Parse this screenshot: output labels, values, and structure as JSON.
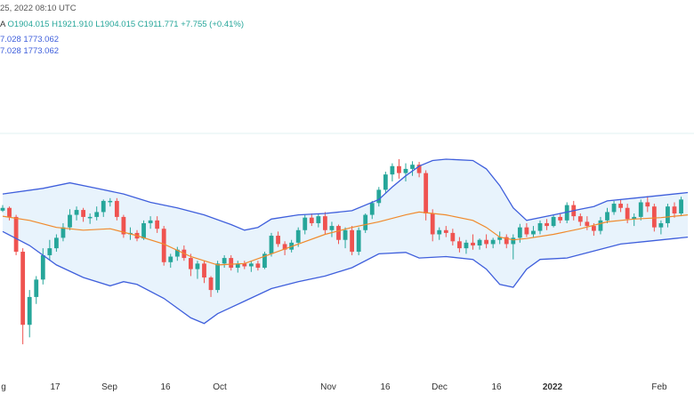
{
  "header": {
    "datetime": "25, 2022 08:10 UTC",
    "ohlc_prefix": "A",
    "open": "O1904.015",
    "high": "H1921.910",
    "low": "L1904.015",
    "close": "C1911.771",
    "change": "+7.755 (+0.41%)",
    "line2": "7.028  1773.062",
    "line3": "7.028  1773.062"
  },
  "colors": {
    "up": "#26a69a",
    "down": "#ef5350",
    "band": "#3f5fdc",
    "band_fill": "#e8f3fc",
    "basis": "#f08a2c",
    "gridline": "#e0f2f1"
  },
  "chart_data": {
    "type": "candlestick",
    "indicator": "bollinger-bands",
    "x_ticks": [
      "g",
      "17",
      "Sep",
      "16",
      "Oct",
      "Nov",
      "16",
      "Dec",
      "16",
      "2022",
      "Feb"
    ],
    "y_range": [
      1620,
      2080
    ],
    "horizontal_line": 1965,
    "candles": [
      [
        1854,
        1862,
        1852,
        1858
      ],
      [
        1858,
        1860,
        1840,
        1845
      ],
      [
        1845,
        1848,
        1790,
        1795
      ],
      [
        1795,
        1800,
        1662,
        1690
      ],
      [
        1690,
        1740,
        1672,
        1730
      ],
      [
        1730,
        1760,
        1720,
        1755
      ],
      [
        1755,
        1800,
        1748,
        1790
      ],
      [
        1790,
        1812,
        1782,
        1800
      ],
      [
        1800,
        1820,
        1795,
        1815
      ],
      [
        1815,
        1836,
        1810,
        1830
      ],
      [
        1830,
        1856,
        1826,
        1848
      ],
      [
        1848,
        1860,
        1840,
        1855
      ],
      [
        1855,
        1858,
        1838,
        1845
      ],
      [
        1845,
        1850,
        1835,
        1845
      ],
      [
        1845,
        1860,
        1840,
        1852
      ],
      [
        1852,
        1870,
        1845,
        1868
      ],
      [
        1868,
        1872,
        1860,
        1868
      ],
      [
        1868,
        1872,
        1840,
        1845
      ],
      [
        1845,
        1848,
        1815,
        1820
      ],
      [
        1820,
        1830,
        1812,
        1822
      ],
      [
        1822,
        1826,
        1810,
        1814
      ],
      [
        1814,
        1840,
        1812,
        1836
      ],
      [
        1836,
        1846,
        1828,
        1840
      ],
      [
        1840,
        1846,
        1822,
        1828
      ],
      [
        1828,
        1832,
        1775,
        1780
      ],
      [
        1780,
        1792,
        1772,
        1788
      ],
      [
        1788,
        1802,
        1782,
        1798
      ],
      [
        1798,
        1804,
        1782,
        1786
      ],
      [
        1786,
        1792,
        1760,
        1770
      ],
      [
        1770,
        1782,
        1756,
        1778
      ],
      [
        1778,
        1782,
        1750,
        1758
      ],
      [
        1758,
        1760,
        1730,
        1740
      ],
      [
        1740,
        1782,
        1736,
        1778
      ],
      [
        1778,
        1790,
        1772,
        1786
      ],
      [
        1786,
        1790,
        1768,
        1772
      ],
      [
        1772,
        1782,
        1765,
        1778
      ],
      [
        1778,
        1782,
        1770,
        1774
      ],
      [
        1774,
        1782,
        1766,
        1778
      ],
      [
        1778,
        1782,
        1768,
        1772
      ],
      [
        1772,
        1795,
        1770,
        1792
      ],
      [
        1792,
        1822,
        1788,
        1818
      ],
      [
        1818,
        1824,
        1802,
        1806
      ],
      [
        1806,
        1810,
        1790,
        1798
      ],
      [
        1798,
        1812,
        1794,
        1808
      ],
      [
        1808,
        1830,
        1802,
        1826
      ],
      [
        1826,
        1848,
        1820,
        1844
      ],
      [
        1844,
        1850,
        1832,
        1836
      ],
      [
        1836,
        1850,
        1830,
        1846
      ],
      [
        1846,
        1852,
        1820,
        1826
      ],
      [
        1826,
        1838,
        1816,
        1832
      ],
      [
        1832,
        1834,
        1806,
        1812
      ],
      [
        1812,
        1830,
        1800,
        1826
      ],
      [
        1826,
        1832,
        1790,
        1795
      ],
      [
        1795,
        1830,
        1790,
        1826
      ],
      [
        1826,
        1850,
        1822,
        1848
      ],
      [
        1848,
        1868,
        1842,
        1865
      ],
      [
        1865,
        1888,
        1860,
        1884
      ],
      [
        1884,
        1910,
        1880,
        1906
      ],
      [
        1906,
        1922,
        1896,
        1918
      ],
      [
        1918,
        1928,
        1900,
        1908
      ],
      [
        1908,
        1922,
        1896,
        1914
      ],
      [
        1914,
        1925,
        1904,
        1920
      ],
      [
        1920,
        1924,
        1902,
        1908
      ],
      [
        1908,
        1912,
        1840,
        1850
      ],
      [
        1850,
        1856,
        1810,
        1820
      ],
      [
        1820,
        1830,
        1812,
        1826
      ],
      [
        1826,
        1832,
        1816,
        1822
      ],
      [
        1822,
        1828,
        1804,
        1810
      ],
      [
        1810,
        1816,
        1794,
        1800
      ],
      [
        1800,
        1812,
        1792,
        1808
      ],
      [
        1808,
        1820,
        1798,
        1804
      ],
      [
        1804,
        1814,
        1798,
        1812
      ],
      [
        1812,
        1820,
        1800,
        1806
      ],
      [
        1806,
        1815,
        1800,
        1812
      ],
      [
        1812,
        1824,
        1806,
        1816
      ],
      [
        1816,
        1820,
        1800,
        1806
      ],
      [
        1806,
        1820,
        1784,
        1815
      ],
      [
        1815,
        1835,
        1808,
        1830
      ],
      [
        1830,
        1836,
        1816,
        1820
      ],
      [
        1820,
        1832,
        1815,
        1825
      ],
      [
        1825,
        1840,
        1820,
        1836
      ],
      [
        1836,
        1842,
        1826,
        1832
      ],
      [
        1832,
        1848,
        1830,
        1845
      ],
      [
        1845,
        1850,
        1836,
        1840
      ],
      [
        1840,
        1866,
        1836,
        1862
      ],
      [
        1862,
        1868,
        1840,
        1846
      ],
      [
        1846,
        1850,
        1832,
        1838
      ],
      [
        1838,
        1846,
        1826,
        1832
      ],
      [
        1832,
        1836,
        1818,
        1825
      ],
      [
        1825,
        1845,
        1820,
        1840
      ],
      [
        1840,
        1858,
        1836,
        1852
      ],
      [
        1852,
        1868,
        1848,
        1864
      ],
      [
        1864,
        1870,
        1852,
        1858
      ],
      [
        1858,
        1864,
        1836,
        1842
      ],
      [
        1842,
        1850,
        1832,
        1845
      ],
      [
        1845,
        1870,
        1840,
        1866
      ],
      [
        1866,
        1875,
        1852,
        1860
      ],
      [
        1860,
        1864,
        1824,
        1830
      ],
      [
        1830,
        1840,
        1820,
        1836
      ],
      [
        1836,
        1864,
        1830,
        1860
      ],
      [
        1860,
        1866,
        1844,
        1850
      ],
      [
        1850,
        1874,
        1846,
        1870
      ]
    ],
    "bb_upper": [
      [
        0,
        1878
      ],
      [
        6,
        1886
      ],
      [
        10,
        1894
      ],
      [
        14,
        1886
      ],
      [
        18,
        1878
      ],
      [
        22,
        1866
      ],
      [
        26,
        1858
      ],
      [
        30,
        1848
      ],
      [
        34,
        1834
      ],
      [
        36,
        1826
      ],
      [
        38,
        1830
      ],
      [
        40,
        1842
      ],
      [
        44,
        1848
      ],
      [
        48,
        1850
      ],
      [
        52,
        1854
      ],
      [
        56,
        1870
      ],
      [
        58,
        1888
      ],
      [
        60,
        1904
      ],
      [
        62,
        1918
      ],
      [
        64,
        1926
      ],
      [
        66,
        1928
      ],
      [
        70,
        1926
      ],
      [
        72,
        1914
      ],
      [
        74,
        1890
      ],
      [
        76,
        1858
      ],
      [
        78,
        1840
      ],
      [
        82,
        1848
      ],
      [
        86,
        1856
      ],
      [
        88,
        1860
      ],
      [
        90,
        1868
      ],
      [
        94,
        1872
      ],
      [
        98,
        1876
      ],
      [
        102,
        1880
      ]
    ],
    "bb_lower": [
      [
        0,
        1824
      ],
      [
        4,
        1804
      ],
      [
        8,
        1776
      ],
      [
        12,
        1758
      ],
      [
        16,
        1746
      ],
      [
        18,
        1752
      ],
      [
        20,
        1748
      ],
      [
        24,
        1728
      ],
      [
        28,
        1700
      ],
      [
        30,
        1692
      ],
      [
        32,
        1706
      ],
      [
        36,
        1724
      ],
      [
        40,
        1742
      ],
      [
        44,
        1752
      ],
      [
        48,
        1760
      ],
      [
        52,
        1772
      ],
      [
        56,
        1792
      ],
      [
        60,
        1794
      ],
      [
        62,
        1786
      ],
      [
        66,
        1788
      ],
      [
        70,
        1784
      ],
      [
        72,
        1770
      ],
      [
        74,
        1748
      ],
      [
        76,
        1744
      ],
      [
        78,
        1770
      ],
      [
        80,
        1784
      ],
      [
        84,
        1786
      ],
      [
        88,
        1796
      ],
      [
        92,
        1806
      ],
      [
        96,
        1810
      ],
      [
        100,
        1814
      ],
      [
        102,
        1816
      ]
    ],
    "bb_basis": [
      [
        0,
        1846
      ],
      [
        4,
        1840
      ],
      [
        8,
        1830
      ],
      [
        12,
        1826
      ],
      [
        16,
        1828
      ],
      [
        20,
        1818
      ],
      [
        24,
        1806
      ],
      [
        28,
        1788
      ],
      [
        32,
        1776
      ],
      [
        36,
        1778
      ],
      [
        40,
        1792
      ],
      [
        44,
        1806
      ],
      [
        48,
        1820
      ],
      [
        52,
        1830
      ],
      [
        56,
        1838
      ],
      [
        60,
        1848
      ],
      [
        62,
        1852
      ],
      [
        66,
        1848
      ],
      [
        70,
        1840
      ],
      [
        72,
        1830
      ],
      [
        74,
        1816
      ],
      [
        76,
        1812
      ],
      [
        78,
        1814
      ],
      [
        82,
        1820
      ],
      [
        86,
        1828
      ],
      [
        90,
        1838
      ],
      [
        94,
        1842
      ],
      [
        98,
        1844
      ],
      [
        102,
        1848
      ]
    ]
  }
}
